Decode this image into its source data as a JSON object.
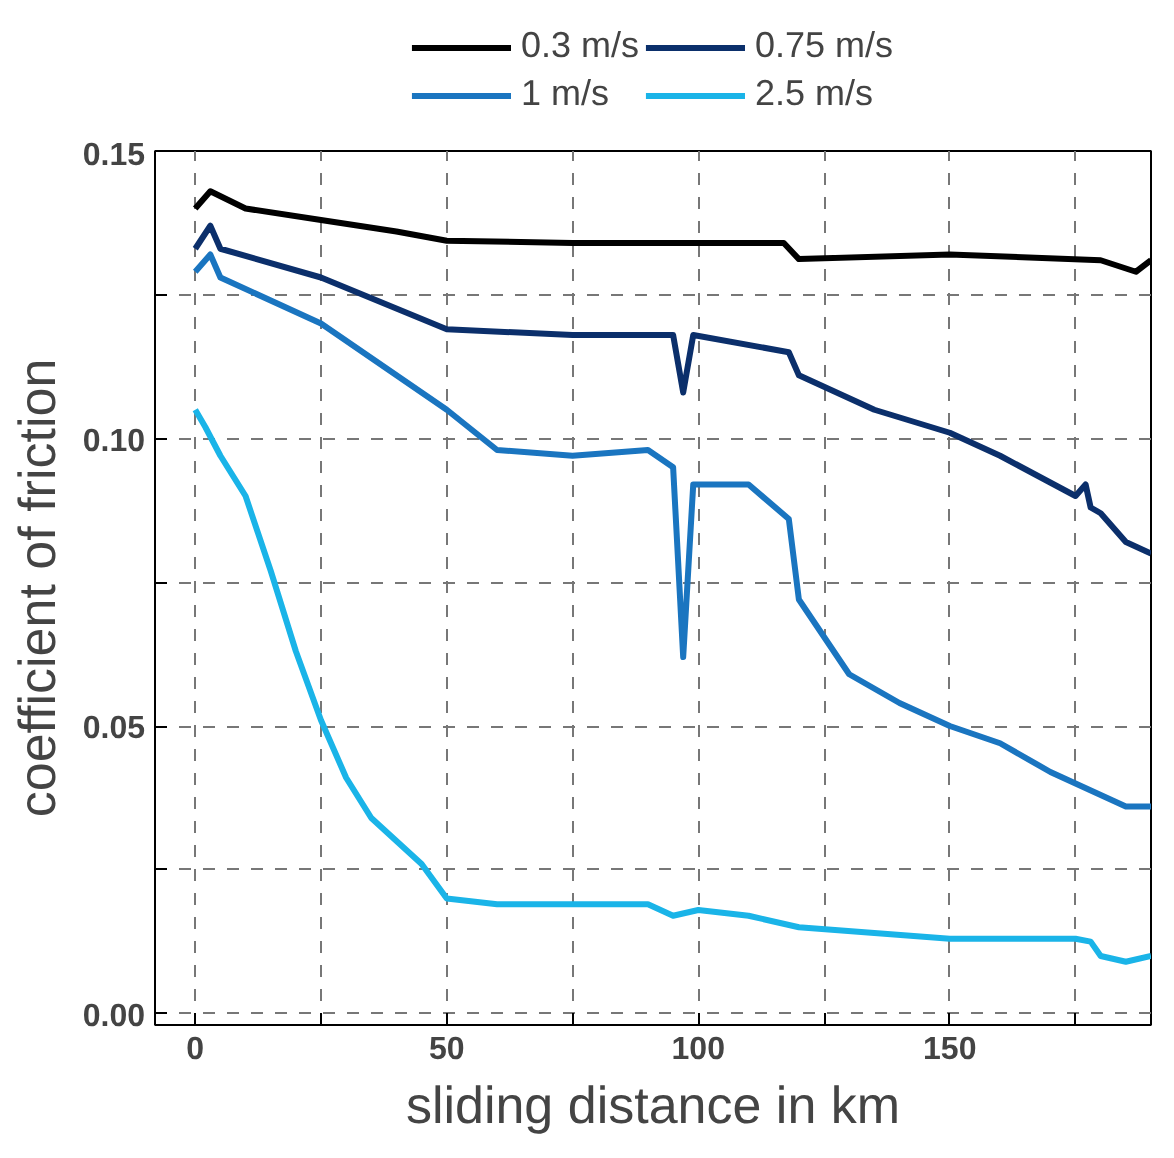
{
  "chart_data": {
    "type": "line",
    "xlabel": "sliding distance in km",
    "ylabel": "coefficient of friction",
    "xlim": [
      -8,
      190
    ],
    "ylim": [
      -0.002,
      0.15
    ],
    "xticks": [
      0,
      {
        "value": 25,
        "label": null
      },
      50,
      {
        "value": 75,
        "label": null
      },
      100,
      {
        "value": 125,
        "label": null
      },
      150,
      {
        "value": 175,
        "label": null
      }
    ],
    "yticks": [
      {
        "value": 0,
        "label": "0.00"
      },
      {
        "value": 0.025,
        "label": null
      },
      {
        "value": 0.05,
        "label": "0.05"
      },
      {
        "value": 0.075,
        "label": null
      },
      {
        "value": 0.1,
        "label": "0.10"
      },
      {
        "value": 0.125,
        "label": null
      },
      {
        "value": 0.15,
        "label": "0.15"
      }
    ],
    "grid": true,
    "legend": "top",
    "line_style": "solid",
    "marker": "none",
    "series": [
      {
        "name": "0.3 m/s",
        "color": "#000000",
        "x": [
          0,
          3,
          10,
          25,
          40,
          50,
          75,
          100,
          117,
          120,
          150,
          180,
          187,
          190
        ],
        "values": [
          0.14,
          0.143,
          0.14,
          0.138,
          0.136,
          0.1344,
          0.134,
          0.134,
          0.134,
          0.1312,
          0.132,
          0.131,
          0.129,
          0.131
        ]
      },
      {
        "name": "0.75 m/s",
        "color": "#0b2f6b",
        "x": [
          0,
          3,
          5,
          25,
          50,
          75,
          95,
          97,
          99,
          118,
          120,
          135,
          150,
          160,
          175,
          177,
          178,
          180,
          185,
          190
        ],
        "values": [
          0.133,
          0.137,
          0.133,
          0.128,
          0.119,
          0.118,
          0.118,
          0.108,
          0.118,
          0.115,
          0.111,
          0.105,
          0.101,
          0.097,
          0.09,
          0.092,
          0.088,
          0.087,
          0.082,
          0.08
        ]
      },
      {
        "name": "1 m/s",
        "color": "#1a75c0",
        "x": [
          0,
          3,
          5,
          25,
          50,
          60,
          75,
          90,
          95,
          97,
          99,
          105,
          110,
          118,
          120,
          130,
          140,
          150,
          160,
          170,
          180,
          185,
          190
        ],
        "values": [
          0.129,
          0.132,
          0.128,
          0.12,
          0.105,
          0.098,
          0.097,
          0.098,
          0.095,
          0.062,
          0.092,
          0.092,
          0.092,
          0.086,
          0.072,
          0.059,
          0.054,
          0.05,
          0.047,
          0.042,
          0.038,
          0.036,
          0.036
        ]
      },
      {
        "name": "2.5 m/s",
        "color": "#1ab4e8",
        "x": [
          0,
          2,
          5,
          10,
          15,
          20,
          25,
          30,
          35,
          40,
          45,
          50,
          60,
          75,
          90,
          95,
          100,
          110,
          120,
          150,
          175,
          178,
          180,
          185,
          190
        ],
        "values": [
          0.105,
          0.102,
          0.097,
          0.09,
          0.077,
          0.063,
          0.051,
          0.041,
          0.034,
          0.03,
          0.026,
          0.02,
          0.019,
          0.019,
          0.019,
          0.017,
          0.018,
          0.017,
          0.015,
          0.013,
          0.013,
          0.0125,
          0.01,
          0.009,
          0.01
        ]
      }
    ]
  }
}
